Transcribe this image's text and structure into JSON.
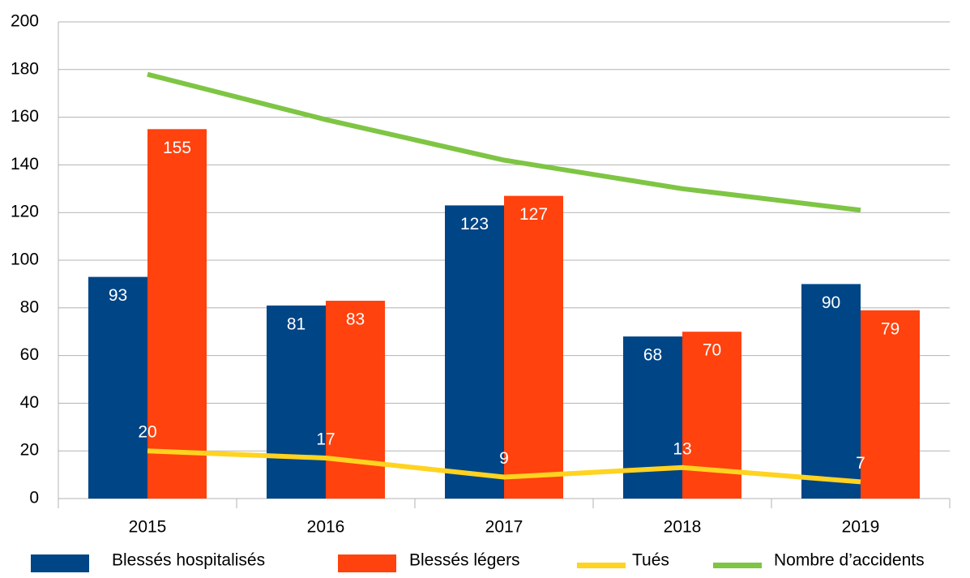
{
  "chart_data": {
    "type": "bar_line",
    "categories": [
      "2015",
      "2016",
      "2017",
      "2018",
      "2019"
    ],
    "series": [
      {
        "name": "Blessés hospitalisés",
        "type": "bar",
        "color": "#004586",
        "values": [
          93,
          81,
          123,
          68,
          90
        ]
      },
      {
        "name": "Blessés légers",
        "type": "bar",
        "color": "#ff420e",
        "values": [
          155,
          83,
          127,
          70,
          79
        ]
      },
      {
        "name": "Tués",
        "type": "line",
        "color": "#ffd320",
        "values": [
          20,
          17,
          9,
          13,
          7
        ]
      },
      {
        "name": "Nombre d’accidents",
        "type": "line",
        "color": "#7ec544",
        "values": [
          178,
          159,
          142,
          130,
          121
        ]
      }
    ],
    "ylim": [
      0,
      200
    ],
    "yticks": [
      0,
      20,
      40,
      60,
      80,
      100,
      120,
      140,
      160,
      180,
      200
    ],
    "grid": true,
    "legend": "bottom"
  }
}
